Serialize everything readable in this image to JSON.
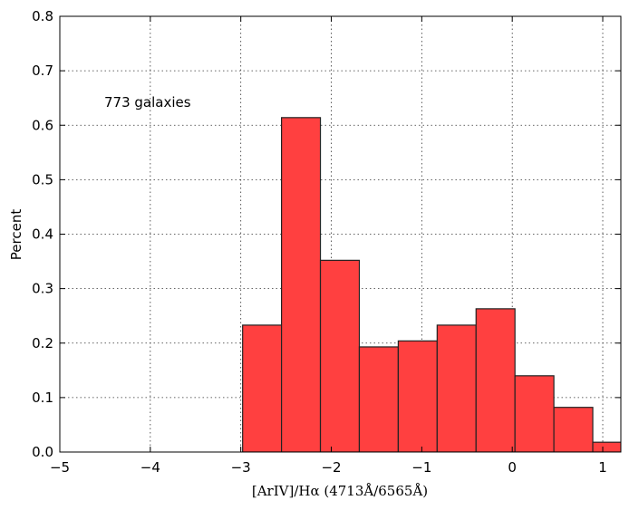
{
  "chart_data": {
    "type": "bar",
    "xlabel": "[ArIV]/Hα (4713Å/6565Å)",
    "ylabel": "Percent",
    "annotation": "773 galaxies",
    "xlim": [
      -5,
      1.2
    ],
    "ylim": [
      0,
      0.8
    ],
    "xticks": [
      "−5",
      "−4",
      "−3",
      "−2",
      "−1",
      "0",
      "1"
    ],
    "xtick_values": [
      -5,
      -4,
      -3,
      -2,
      -1,
      0,
      1
    ],
    "yticks": [
      "0.0",
      "0.1",
      "0.2",
      "0.3",
      "0.4",
      "0.5",
      "0.6",
      "0.7",
      "0.8"
    ],
    "ytick_values": [
      0,
      0.1,
      0.2,
      0.3,
      0.4,
      0.5,
      0.6,
      0.7,
      0.8
    ],
    "grid": true,
    "bins": [
      {
        "x0": -2.98,
        "x1": -2.55,
        "value": 0.233
      },
      {
        "x0": -2.55,
        "x1": -2.12,
        "value": 0.614
      },
      {
        "x0": -2.12,
        "x1": -1.69,
        "value": 0.352
      },
      {
        "x0": -1.69,
        "x1": -1.26,
        "value": 0.193
      },
      {
        "x0": -1.26,
        "x1": -0.83,
        "value": 0.204
      },
      {
        "x0": -0.83,
        "x1": -0.4,
        "value": 0.233
      },
      {
        "x0": -0.4,
        "x1": 0.03,
        "value": 0.263
      },
      {
        "x0": 0.03,
        "x1": 0.46,
        "value": 0.14
      },
      {
        "x0": 0.46,
        "x1": 0.89,
        "value": 0.082
      },
      {
        "x0": 0.89,
        "x1": 1.32,
        "value": 0.018
      }
    ],
    "colors": {
      "bar": "#ff4040",
      "edge": "#222222"
    }
  }
}
